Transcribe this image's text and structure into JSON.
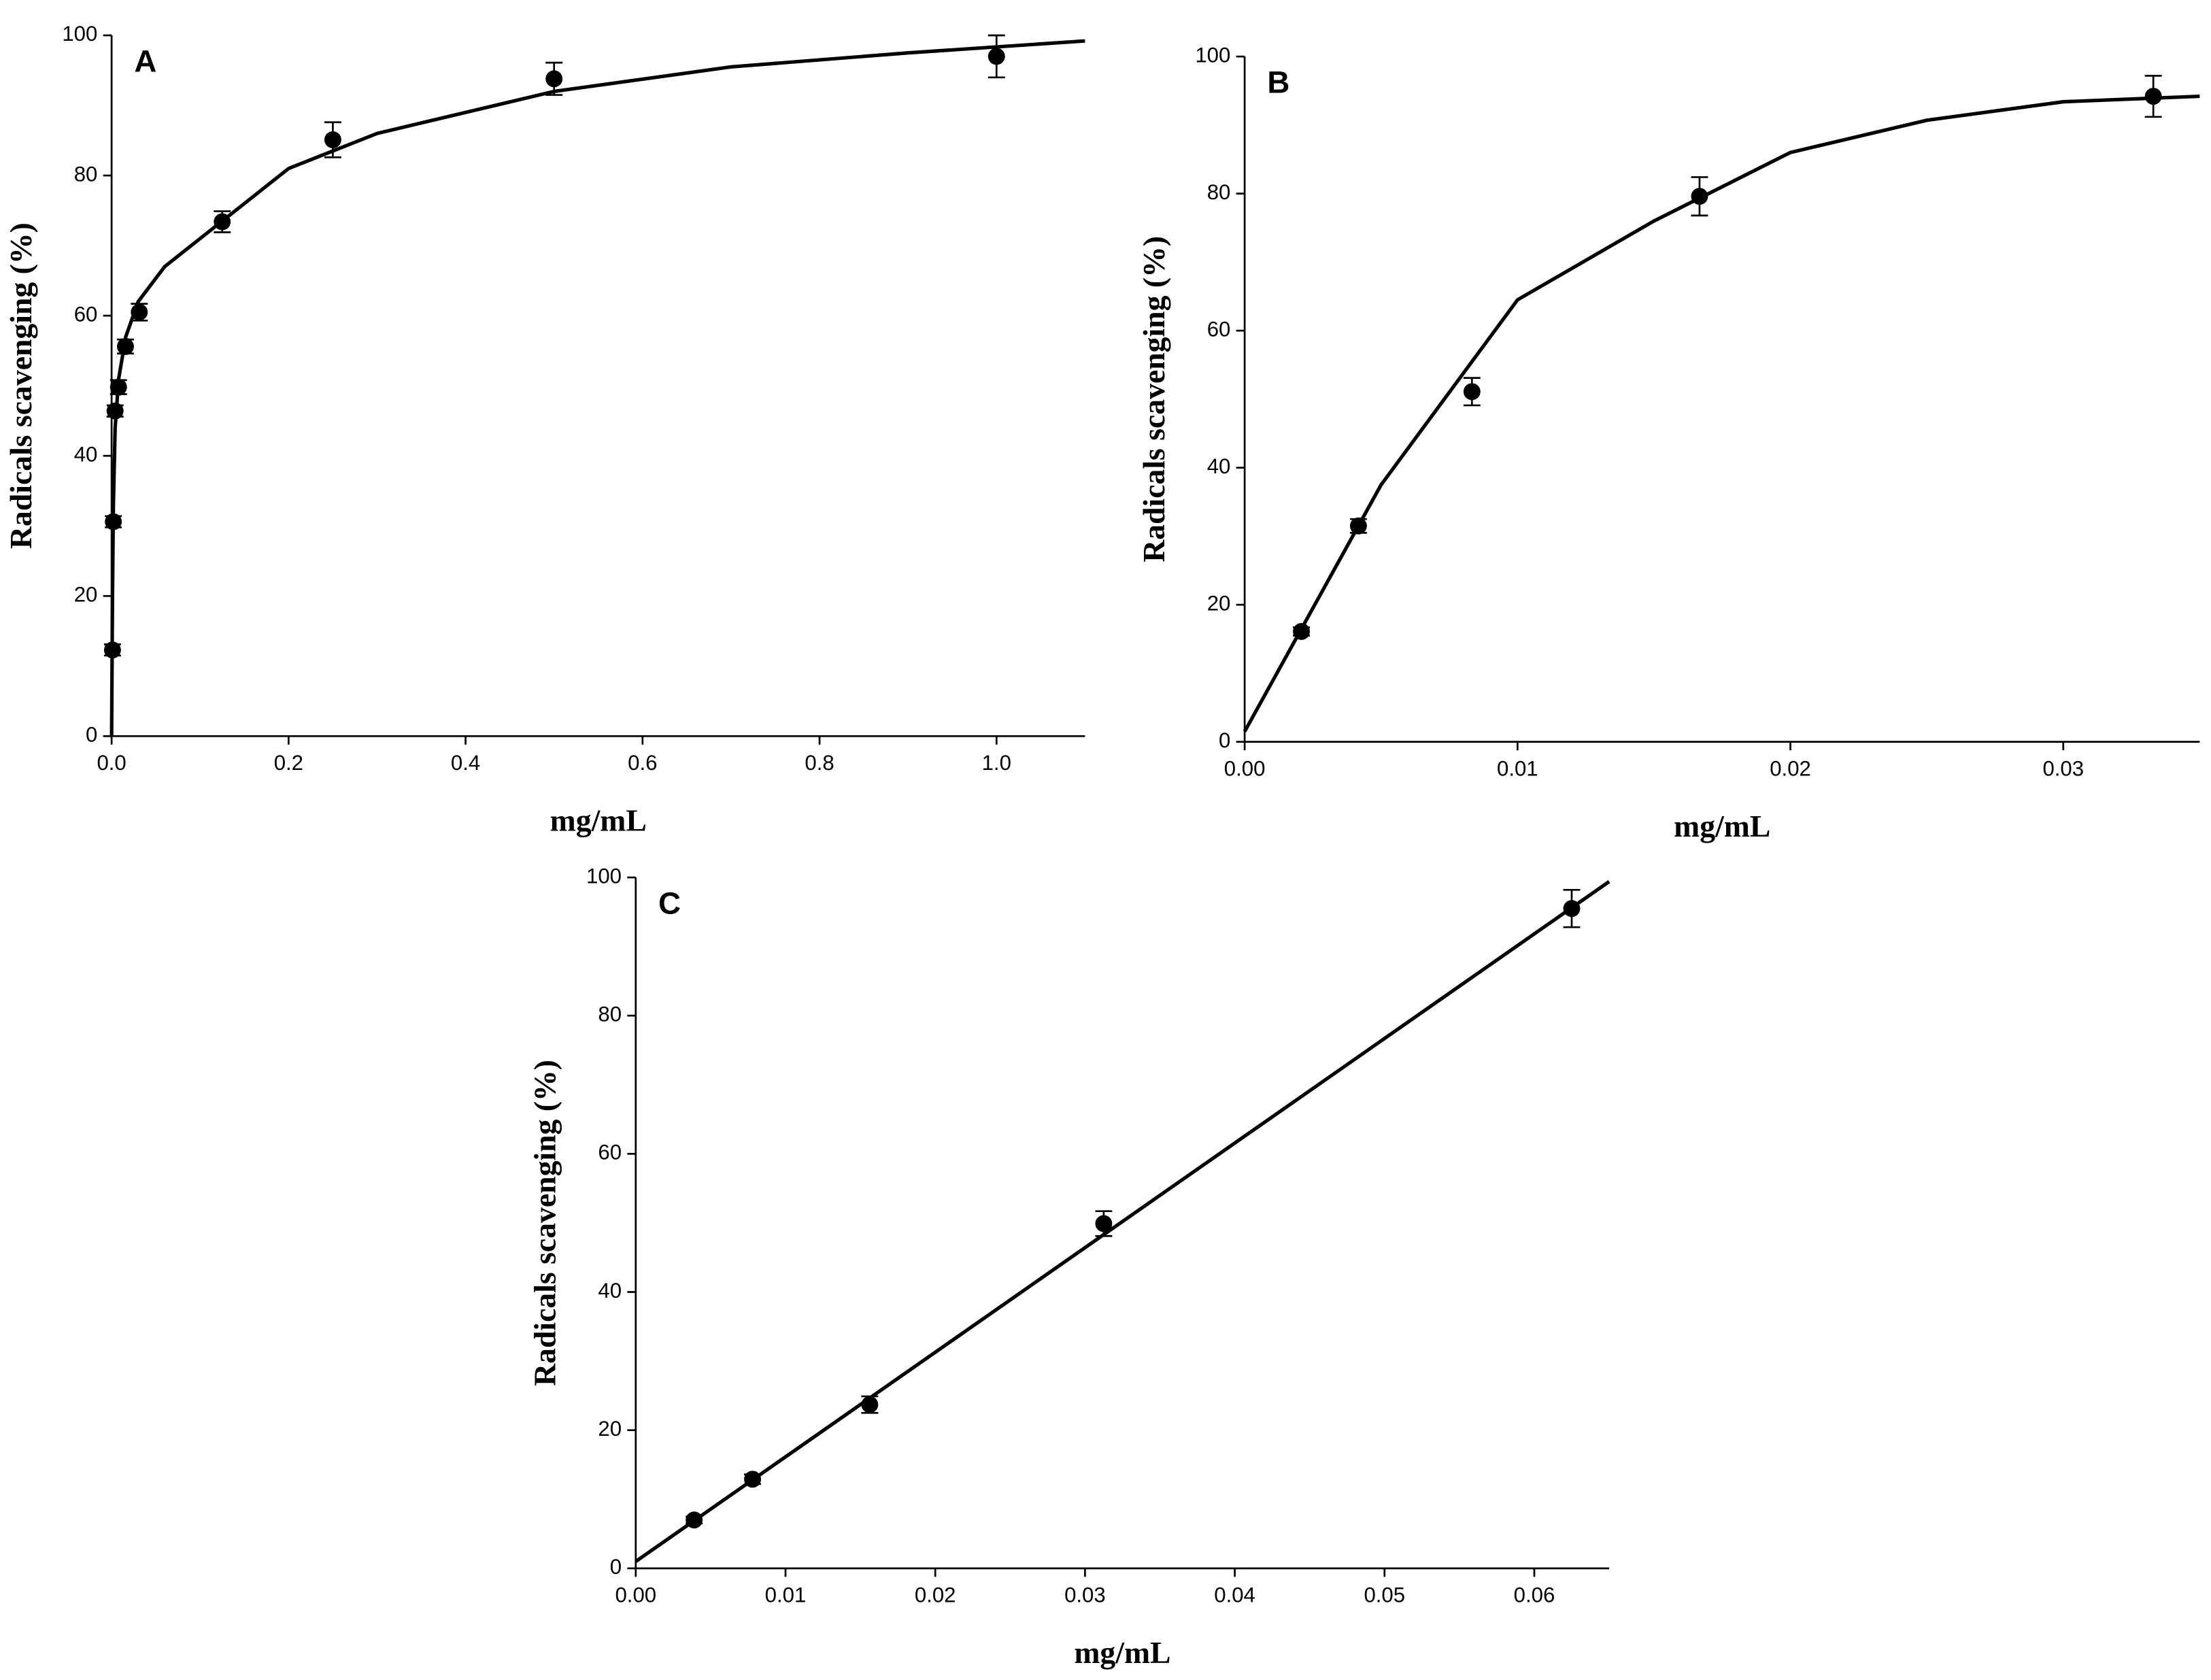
{
  "chart_data": [
    {
      "type": "scatter",
      "panel": "A",
      "x_label": "mg/mL",
      "y_label": "Radicals scavenging (%)",
      "color": "#000000",
      "x": [
        0.00098,
        0.00195,
        0.0039,
        0.0078,
        0.015625,
        0.03125,
        0.125,
        0.25,
        0.5,
        1.0
      ],
      "values": [
        12.3,
        30.6,
        46.4,
        49.8,
        55.6,
        60.5,
        73.4,
        85.1,
        93.8,
        97.0
      ],
      "errors": [
        0.8,
        0.8,
        0.8,
        1.0,
        1.0,
        1.2,
        1.5,
        2.5,
        2.3,
        3.0
      ],
      "fit": {
        "x": [
          0,
          0.001,
          0.002,
          0.004,
          0.008,
          0.016,
          0.03,
          0.06,
          0.1,
          0.2,
          0.3,
          0.5,
          0.7,
          0.9,
          1.1
        ],
        "y": [
          0,
          20,
          33,
          44,
          51,
          57,
          62,
          67,
          71,
          81,
          86,
          92,
          95.5,
          97.5,
          99.2
        ]
      },
      "xlim": [
        0,
        1.1
      ],
      "xticks": [
        {
          "value": 0,
          "label": "0.0"
        },
        0.2,
        0.4,
        0.6,
        0.8,
        {
          "value": 1,
          "label": "1.0"
        }
      ],
      "ylim": [
        0,
        100
      ],
      "yticks": [
        0,
        20,
        40,
        60,
        80,
        100
      ]
    },
    {
      "type": "scatter",
      "panel": "B",
      "x_label": "mg/mL",
      "y_label": "Radicals scavenging (%)",
      "color": "#000000",
      "x": [
        0.00208,
        0.00417,
        0.00833,
        0.01667,
        0.0333
      ],
      "values": [
        16.1,
        31.5,
        51.1,
        79.6,
        94.2
      ],
      "errors": [
        0.6,
        1.0,
        2.0,
        2.8,
        3.0
      ],
      "fit": {
        "x": [
          0,
          0.005,
          0.01,
          0.015,
          0.02,
          0.025,
          0.03,
          0.035
        ],
        "y": [
          1.5,
          37.5,
          64.5,
          76,
          86,
          90.7,
          93.4,
          94.2
        ]
      },
      "xlim": [
        0,
        0.035
      ],
      "xticks": [
        {
          "value": 0,
          "label": "0.00"
        },
        0.01,
        0.02,
        0.03
      ],
      "ylim": [
        0,
        100
      ],
      "yticks": [
        0,
        20,
        40,
        60,
        80,
        100
      ]
    },
    {
      "type": "scatter",
      "panel": "C",
      "x_label": "mg/mL",
      "y_label": "Radicals scavenging (%)",
      "color": "#000000",
      "x": [
        0.0039,
        0.0078,
        0.015625,
        0.03125,
        0.0625
      ],
      "values": [
        7.0,
        12.9,
        23.7,
        49.9,
        95.5
      ],
      "errors": [
        0.5,
        0.7,
        1.2,
        1.8,
        2.7
      ],
      "fit": {
        "x": [
          0,
          0.065
        ],
        "y": [
          1,
          99.4
        ]
      },
      "xlim": [
        0,
        0.065
      ],
      "xticks": [
        {
          "value": 0,
          "label": "0.00"
        },
        0.01,
        0.02,
        0.03,
        0.04,
        0.05,
        0.06
      ],
      "ylim": [
        0,
        100
      ],
      "yticks": [
        0,
        20,
        40,
        60,
        80,
        100
      ]
    }
  ]
}
